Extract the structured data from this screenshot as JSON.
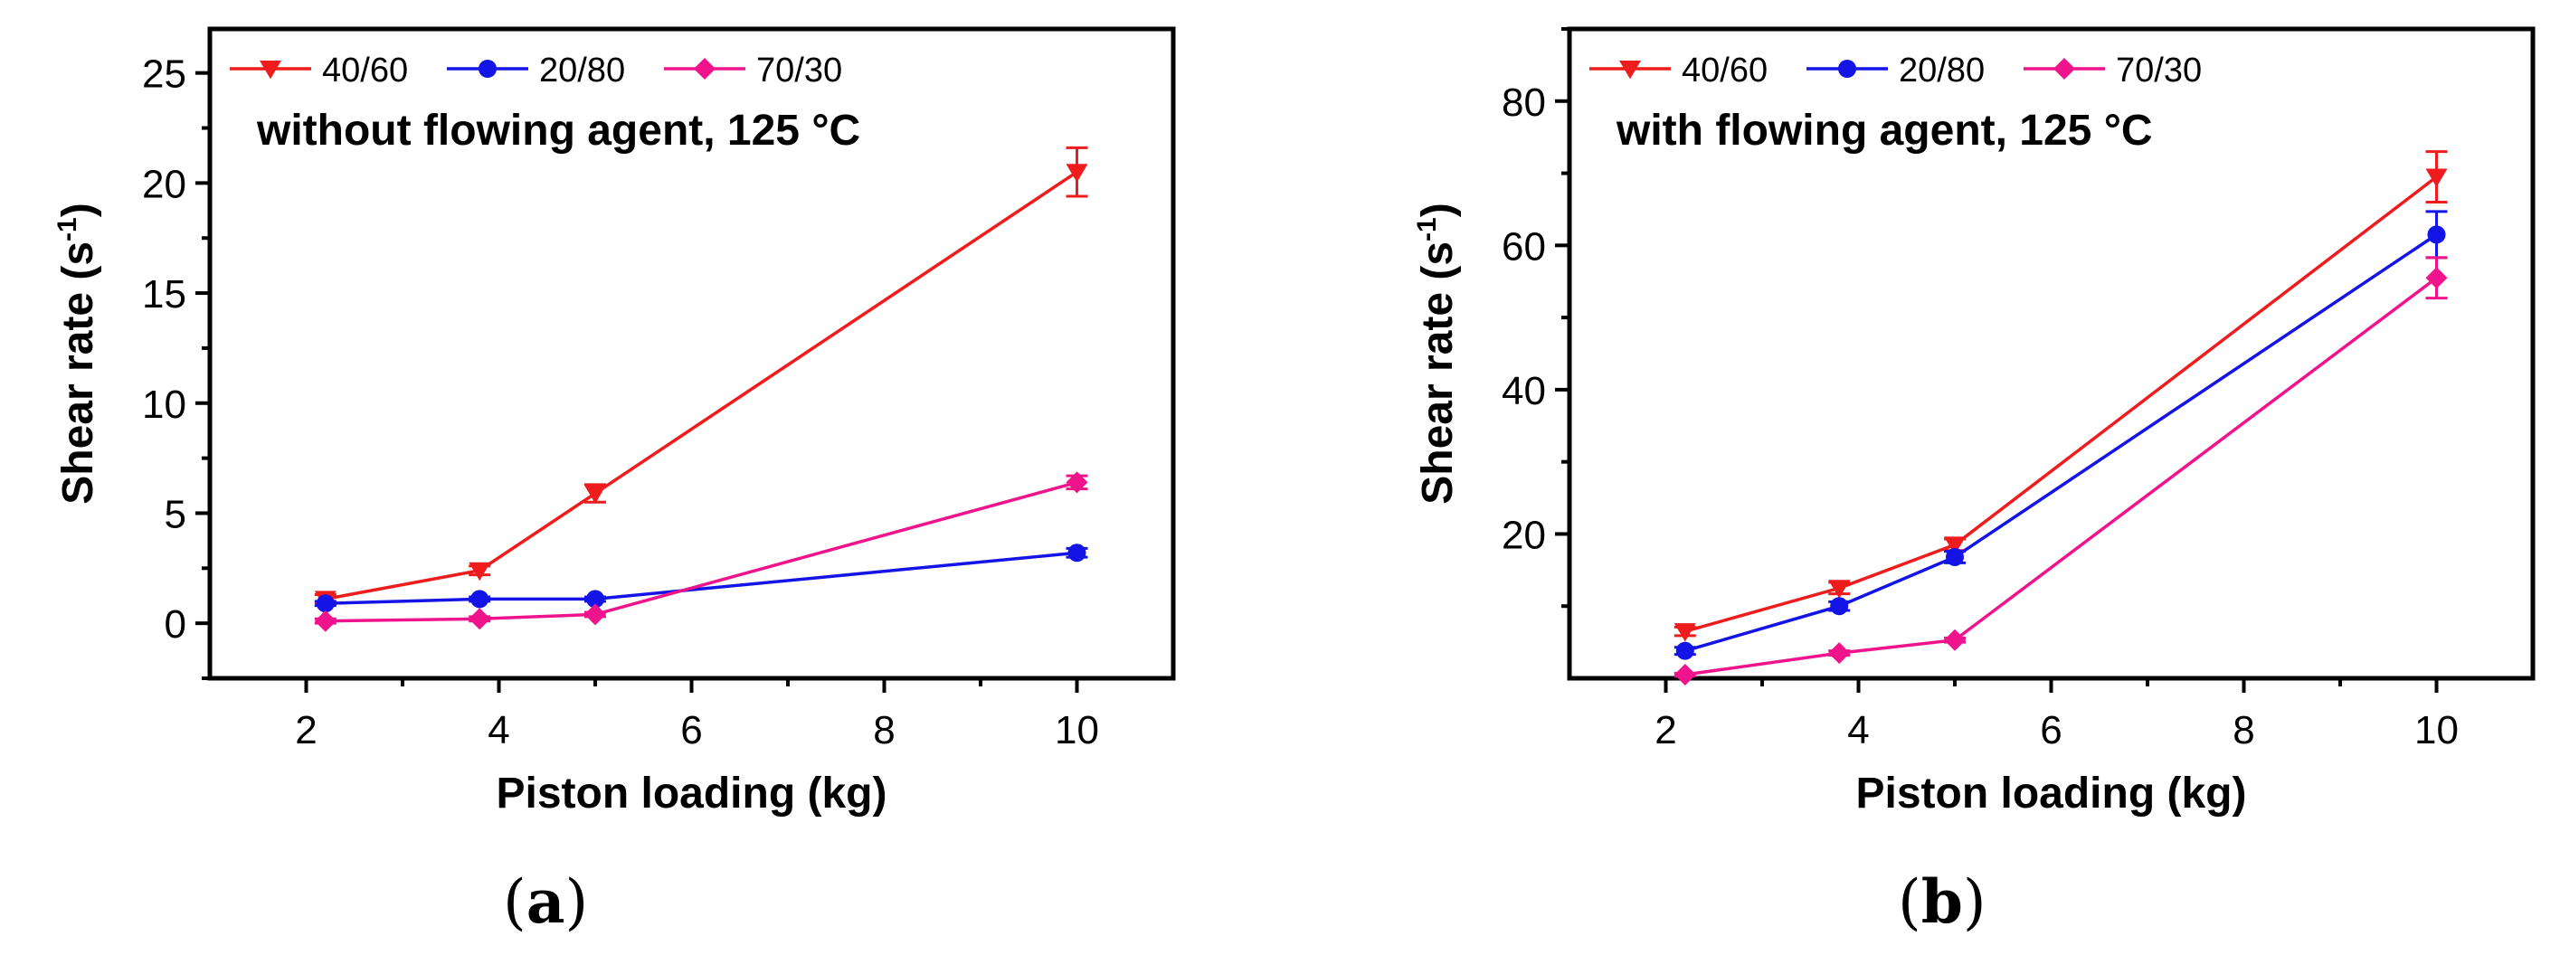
{
  "colors": {
    "s40_60": "#ee1c1c",
    "s20_80": "#1414e6",
    "s70_30": "#f0148c",
    "axis": "#000000"
  },
  "captions": [
    {
      "open": "(",
      "label": "a",
      "close": ")"
    },
    {
      "open": "(",
      "label": "b",
      "close": ")"
    }
  ],
  "chart_data": [
    {
      "type": "line",
      "title": "",
      "annotation": "without flowing agent, 125 °C",
      "xlabel": "Piston loading (kg)",
      "ylabel_main": "Shear rate (s",
      "ylabel_sup": "-1",
      "ylabel_close": ")",
      "xlim": [
        1,
        11
      ],
      "ylim": [
        -2.5,
        27
      ],
      "xticks": [
        2,
        4,
        6,
        8,
        10
      ],
      "xtick_labels": [
        "2",
        "4",
        "6",
        "8",
        "10"
      ],
      "yticks": [
        0,
        5,
        10,
        15,
        20,
        25
      ],
      "ytick_labels": [
        "0",
        "5",
        "10",
        "15",
        "20",
        "25"
      ],
      "legend_position": "top",
      "series": [
        {
          "name": "40/60",
          "marker": "triangle-down",
          "color": "#ee1c1c",
          "x": [
            2.2,
            3.8,
            5,
            10
          ],
          "y": [
            1.1,
            2.4,
            5.9,
            20.5
          ],
          "err": [
            0.2,
            0.2,
            0.4,
            1.1
          ]
        },
        {
          "name": "20/80",
          "marker": "circle",
          "color": "#1414e6",
          "x": [
            2.2,
            3.8,
            5,
            10
          ],
          "y": [
            0.9,
            1.1,
            1.1,
            3.2
          ],
          "err": [
            0.1,
            0.1,
            0.1,
            0.2
          ]
        },
        {
          "name": "70/30",
          "marker": "diamond",
          "color": "#f0148c",
          "x": [
            2.2,
            3.8,
            5,
            10
          ],
          "y": [
            0.1,
            0.2,
            0.4,
            6.4
          ],
          "err": [
            0.1,
            0.1,
            0.1,
            0.3
          ]
        }
      ]
    },
    {
      "type": "line",
      "title": "",
      "annotation": "with flowing agent, 125 °C",
      "xlabel": "Piston loading (kg)",
      "ylabel_main": "Shear rate (s",
      "ylabel_sup": "-1",
      "ylabel_close": ")",
      "xlim": [
        1,
        11
      ],
      "ylim": [
        0,
        90
      ],
      "xticks": [
        2,
        4,
        6,
        8,
        10
      ],
      "xtick_labels": [
        "2",
        "4",
        "6",
        "8",
        "10"
      ],
      "yticks": [
        20,
        40,
        60,
        80
      ],
      "ytick_labels": [
        "20",
        "40",
        "60",
        "80"
      ],
      "legend_position": "top",
      "series": [
        {
          "name": "40/60",
          "marker": "triangle-down",
          "color": "#ee1c1c",
          "x": [
            2.2,
            3.8,
            5,
            10
          ],
          "y": [
            6.5,
            12.5,
            18.5,
            69.5
          ],
          "err": [
            0.6,
            0.8,
            0.8,
            3.5
          ]
        },
        {
          "name": "20/80",
          "marker": "circle",
          "color": "#1414e6",
          "x": [
            2.2,
            3.8,
            5,
            10
          ],
          "y": [
            3.8,
            10,
            16.8,
            61.5
          ],
          "err": [
            0.5,
            0.6,
            0.8,
            3.2
          ]
        },
        {
          "name": "70/30",
          "marker": "diamond",
          "color": "#f0148c",
          "x": [
            2.2,
            3.8,
            5,
            10
          ],
          "y": [
            0.5,
            3.5,
            5.3,
            55.5
          ],
          "err": [
            0.2,
            0.3,
            0.3,
            2.8
          ]
        }
      ]
    }
  ]
}
